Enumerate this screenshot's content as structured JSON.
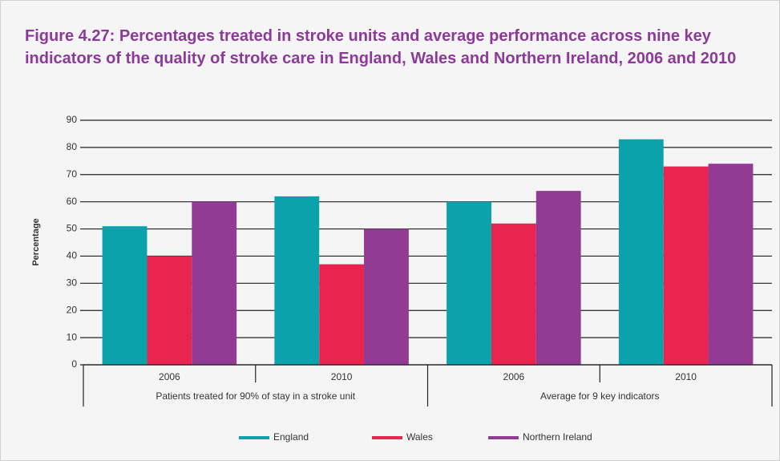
{
  "chart_data": {
    "type": "bar",
    "title": "Figure 4.27: Percentages treated in stroke units and average performance across nine key indicators of the quality of stroke care in England, Wales and Northern Ireland, 2006 and 2010",
    "y_label": "Percentage",
    "groups": [
      {
        "label": "Patients treated for 90% of stay in a stroke unit",
        "categories": [
          "2006",
          "2010"
        ]
      },
      {
        "label": "Average for 9 key indicators",
        "categories": [
          "2006",
          "2010"
        ]
      }
    ],
    "series": [
      {
        "name": "England",
        "color": "#0ba2ac",
        "values": [
          51,
          62,
          60,
          83
        ]
      },
      {
        "name": "Wales",
        "color": "#e8244f",
        "values": [
          40,
          37,
          52,
          73
        ]
      },
      {
        "name": "Northern Ireland",
        "color": "#923b94",
        "values": [
          60,
          50,
          64,
          74
        ]
      }
    ],
    "ylim": [
      0,
      90
    ],
    "yticks": [
      0,
      10,
      20,
      30,
      40,
      50,
      60,
      70,
      80,
      90
    ],
    "grid": true,
    "legend": "bottom"
  }
}
